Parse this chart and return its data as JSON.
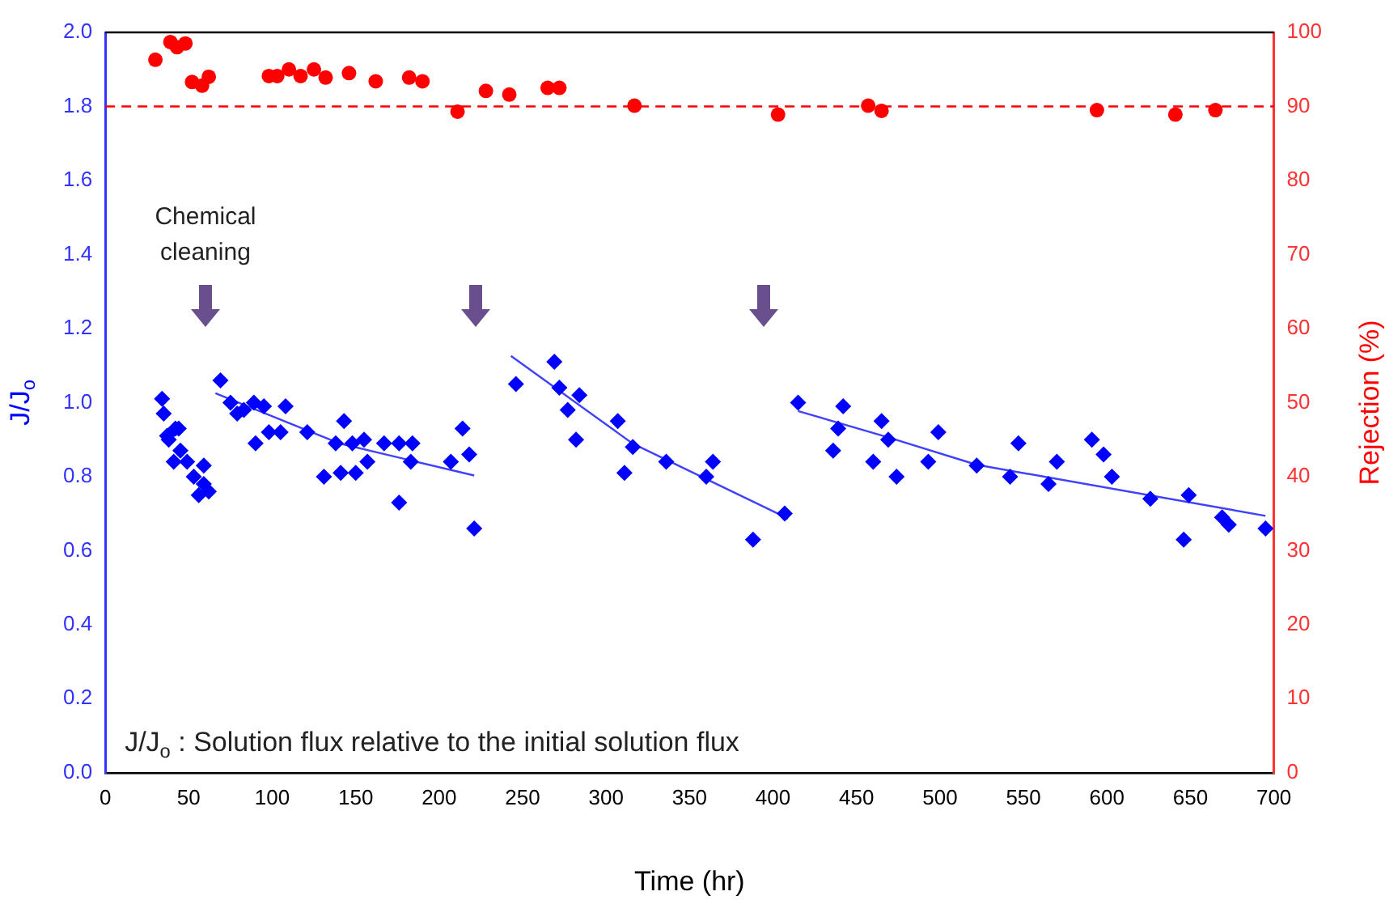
{
  "chart_data": {
    "type": "scatter",
    "xlabel": "Time (hr)",
    "ylabel": "J/J$_{o}$",
    "y2label": "Rejection (%)",
    "annotations": [
      "Chemical cleaning",
      "J/J$_{o}$ : Solution flux relative to the initial solution flux"
    ],
    "xlim": [
      0,
      700
    ],
    "xticks": [
      0,
      50,
      100,
      150,
      200,
      250,
      300,
      350,
      400,
      450,
      500,
      550,
      600,
      650,
      700
    ],
    "ylim": [
      0,
      2
    ],
    "yticks": [
      {
        "value": 0,
        "label": "0.0"
      },
      0.2,
      0.4,
      0.6,
      0.8,
      {
        "value": 1,
        "label": "1.0"
      },
      1.2,
      1.4,
      1.6,
      1.8,
      {
        "value": 2,
        "label": "2.0"
      }
    ],
    "y2lim": [
      0,
      100
    ],
    "y2ticks": [
      0,
      10,
      20,
      30,
      40,
      50,
      60,
      70,
      80,
      90,
      100
    ],
    "grid": false,
    "ref_lines": [
      {
        "axis": "y2",
        "value": 90,
        "color": "#ff0000",
        "line_style": "dashed"
      }
    ],
    "series": [
      {
        "type": "scatter",
        "color": "#0000ff",
        "marker": "diamond",
        "x": [
          34,
          35,
          37,
          38,
          41,
          42,
          44,
          45,
          49,
          53,
          56,
          59,
          59,
          62,
          69,
          75,
          79,
          83,
          89,
          90,
          95,
          98,
          105,
          108,
          121,
          131,
          138,
          141,
          143,
          148,
          150,
          155,
          157,
          167,
          176,
          176,
          183,
          184,
          207,
          214,
          218,
          221,
          246,
          269,
          272,
          277,
          282,
          284,
          307,
          311,
          316,
          336,
          360,
          364,
          388,
          407,
          415,
          436,
          439,
          442,
          460,
          465,
          469,
          474,
          493,
          499,
          522,
          542,
          547,
          565,
          570,
          591,
          598,
          603,
          626,
          646,
          649,
          669,
          673,
          695
        ],
        "values": [
          1.01,
          0.97,
          0.91,
          0.9,
          0.84,
          0.93,
          0.93,
          0.87,
          0.84,
          0.8,
          0.75,
          0.78,
          0.83,
          0.76,
          1.06,
          1.0,
          0.97,
          0.98,
          1.0,
          0.89,
          0.99,
          0.92,
          0.92,
          0.99,
          0.92,
          0.8,
          0.89,
          0.81,
          0.95,
          0.89,
          0.81,
          0.9,
          0.84,
          0.89,
          0.73,
          0.89,
          0.84,
          0.89,
          0.84,
          0.93,
          0.86,
          0.66,
          1.05,
          1.11,
          1.04,
          0.98,
          0.9,
          1.02,
          0.95,
          0.81,
          0.88,
          0.84,
          0.8,
          0.84,
          0.63,
          0.7,
          1.0,
          0.87,
          0.93,
          0.99,
          0.84,
          0.95,
          0.9,
          0.8,
          0.84,
          0.92,
          0.83,
          0.8,
          0.89,
          0.78,
          0.84,
          0.9,
          0.86,
          0.8,
          0.74,
          0.63,
          0.75,
          0.69,
          0.67,
          0.66
        ]
      },
      {
        "type": "scatter",
        "axis": "y2",
        "color": "#ff0000",
        "marker": "circle",
        "x": [
          30,
          39,
          43,
          48,
          52,
          58,
          62,
          98,
          103,
          110,
          117,
          125,
          132,
          146,
          162,
          182,
          190,
          211,
          228,
          242,
          265,
          272,
          317,
          403,
          457,
          465,
          594,
          641,
          665
        ],
        "values": [
          96.3,
          98.7,
          98,
          98.5,
          93.3,
          92.8,
          94,
          94.1,
          94.1,
          95,
          94.1,
          95,
          93.9,
          94.5,
          93.4,
          93.9,
          93.4,
          89.3,
          92.1,
          91.6,
          92.5,
          92.5,
          90.1,
          88.9,
          90.1,
          89.4,
          89.5,
          88.9,
          89.5
        ]
      },
      {
        "type": "line",
        "color": "#4040ff",
        "marker": "none",
        "x": [
          66,
          140,
          221
        ],
        "values": [
          1.025,
          0.89,
          0.803
        ]
      },
      {
        "type": "line",
        "color": "#4040ff",
        "marker": "none",
        "x": [
          243,
          316,
          409
        ],
        "values": [
          1.126,
          0.889,
          0.687
        ]
      },
      {
        "type": "line",
        "color": "#4040ff",
        "marker": "none",
        "x": [
          415,
          469,
          522,
          695
        ],
        "values": [
          0.977,
          0.906,
          0.832,
          0.694
        ]
      }
    ]
  }
}
